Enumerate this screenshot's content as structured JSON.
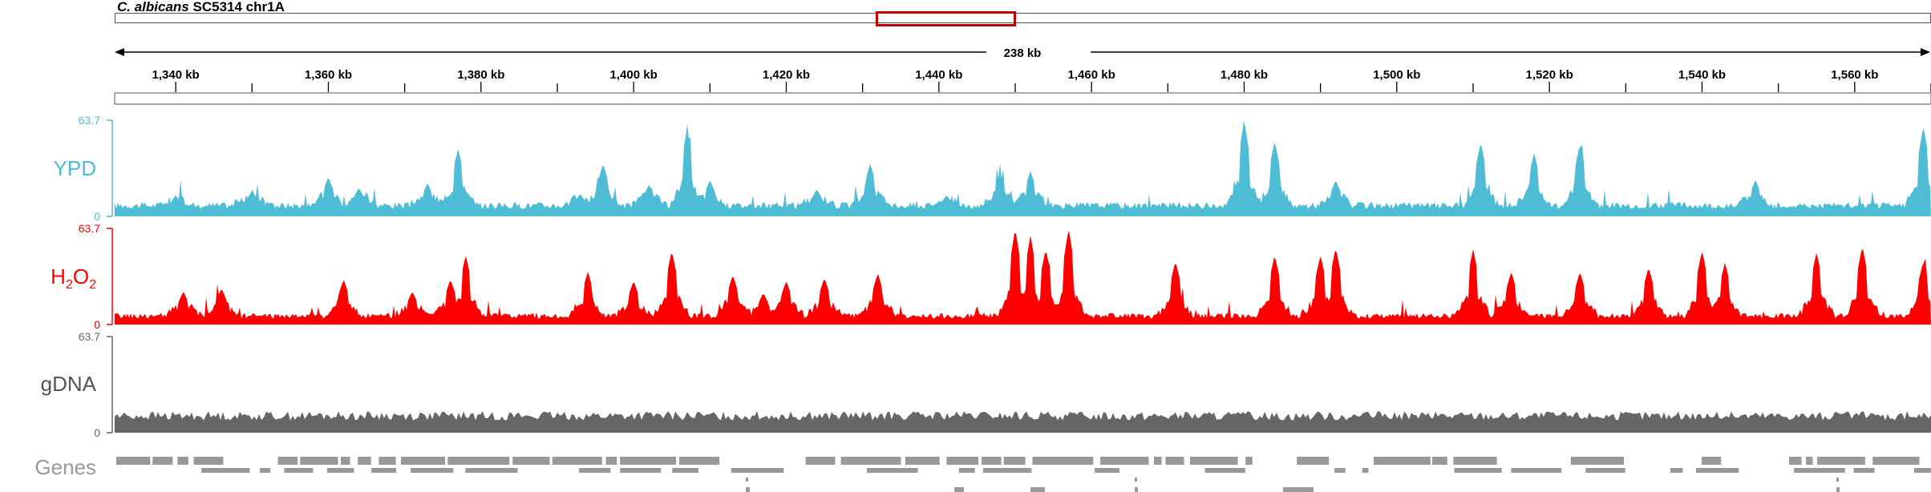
{
  "header": {
    "species": "C. albicans",
    "strain_chrom": "SC5314 chr1A"
  },
  "ruler": {
    "span_label": "238 kb",
    "tick_labels": [
      "1,340 kb",
      "1,360 kb",
      "1,380 kb",
      "1,400 kb",
      "1,420 kb",
      "1,440 kb",
      "1,460 kb",
      "1,480 kb",
      "1,500 kb",
      "1,520 kb",
      "1,540 kb",
      "1,560 kb"
    ]
  },
  "tracks": [
    {
      "id": "ypd",
      "label": "YPD",
      "max": "63.7",
      "min": "0",
      "color": "#4dbcd4"
    },
    {
      "id": "h2o2",
      "label_main": "H",
      "label_sub1": "2",
      "label_mid": "O",
      "label_sub2": "2",
      "max": "63.7",
      "min": "0",
      "color": "#ff0000"
    },
    {
      "id": "gdna",
      "label": "gDNA",
      "max": "63.7",
      "min": "0",
      "color": "#666666"
    }
  ],
  "genes_track": {
    "label": "Genes",
    "color": "#999999"
  },
  "chart_data": {
    "type": "area",
    "x_range_kb": [
      1332,
      1570
    ],
    "ylim": [
      0,
      63.7
    ],
    "series": [
      {
        "name": "YPD",
        "peaks_kb": [
          1340,
          1350,
          1360,
          1364,
          1373,
          1377,
          1393,
          1396,
          1402,
          1407,
          1410,
          1424,
          1431,
          1441,
          1448,
          1452,
          1480,
          1484,
          1492,
          1511,
          1518,
          1524,
          1547,
          1569
        ],
        "peak_values": [
          14,
          17,
          26,
          19,
          22,
          45,
          15,
          35,
          21,
          58,
          24,
          18,
          35,
          14,
          28,
          30,
          63.7,
          50,
          24,
          49,
          42,
          48,
          24,
          60
        ]
      },
      {
        "name": "H2O2",
        "peaks_kb": [
          1341,
          1346,
          1362,
          1371,
          1376,
          1378,
          1394,
          1400,
          1405,
          1413,
          1417,
          1420,
          1425,
          1432,
          1450,
          1452,
          1454,
          1457,
          1471,
          1484,
          1490,
          1492,
          1510,
          1515,
          1524,
          1533,
          1540,
          1543,
          1555,
          1561,
          1569
        ],
        "peak_values": [
          22,
          24,
          30,
          22,
          30,
          46,
          35,
          29,
          49,
          33,
          21,
          29,
          31,
          34,
          63.7,
          59,
          50,
          63.7,
          42,
          46,
          46,
          51,
          50,
          35,
          35,
          38,
          49,
          41,
          48,
          52,
          42
        ]
      },
      {
        "name": "gDNA",
        "baseline_value": 10,
        "variation": "low, nearly uniform coverage"
      }
    ]
  }
}
